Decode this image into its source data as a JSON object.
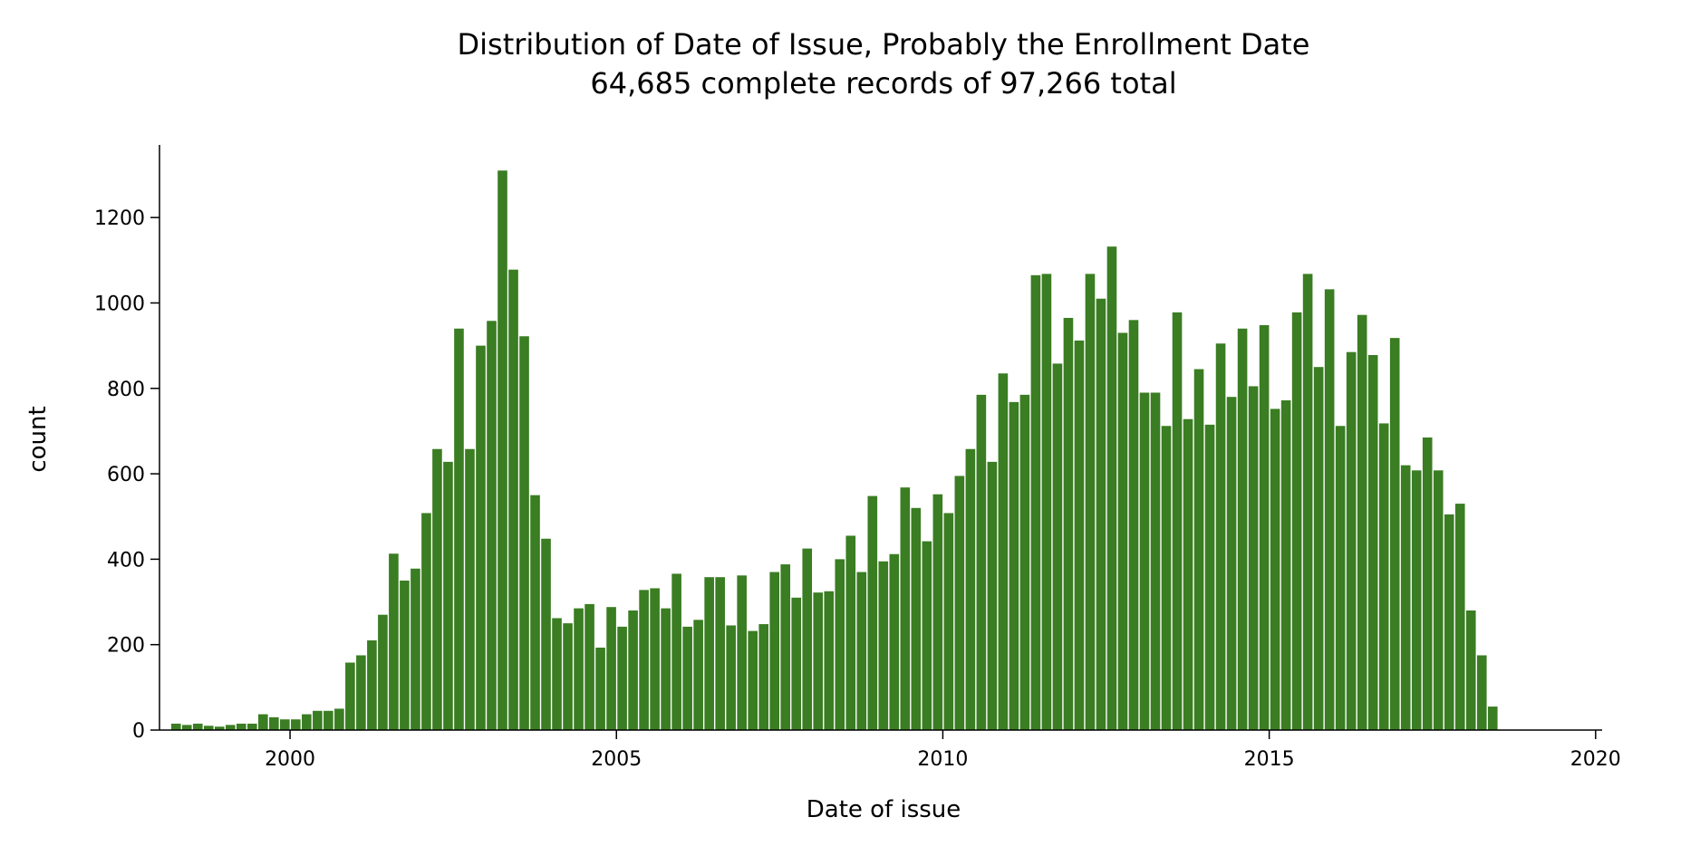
{
  "chart_data": {
    "type": "bar",
    "title": "Distribution of Date of Issue, Probably the Enrollment Date",
    "subtitle": "64,685 complete records of 97,266 total",
    "xlabel": "Date of issue",
    "ylabel": "count",
    "bar_color": "#3a7d22",
    "xlim": [
      1998.0,
      2020.1
    ],
    "ylim": [
      0,
      1370
    ],
    "x_ticks": [
      2000,
      2005,
      2010,
      2015,
      2020
    ],
    "y_ticks": [
      0,
      200,
      400,
      600,
      800,
      1000,
      1200
    ],
    "grid": false,
    "legend": "none",
    "bin_width_years": 0.1667,
    "bin_start": 1998.17,
    "values": [
      15,
      12,
      15,
      10,
      8,
      12,
      15,
      15,
      37,
      30,
      25,
      25,
      37,
      45,
      45,
      50,
      158,
      175,
      210,
      270,
      413,
      350,
      378,
      508,
      658,
      628,
      940,
      658,
      900,
      958,
      1310,
      1078,
      922,
      550,
      448,
      262,
      250,
      285,
      295,
      193,
      288,
      242,
      280,
      328,
      332,
      285,
      366,
      242,
      258,
      358,
      358,
      245,
      362,
      232,
      248,
      370,
      388,
      310,
      425,
      322,
      325,
      400,
      455,
      370,
      548,
      395,
      412,
      568,
      520,
      442,
      552,
      508,
      595,
      658,
      785,
      628,
      835,
      768,
      785,
      1065,
      1068,
      858,
      965,
      912,
      1068,
      1010,
      1132,
      930,
      960,
      790,
      790,
      712,
      978,
      728,
      845,
      715,
      905,
      780,
      940,
      805,
      948,
      752,
      772,
      978,
      1068,
      850,
      1032,
      712,
      885,
      972,
      878,
      718,
      918,
      620,
      608,
      685,
      608,
      505,
      530,
      280,
      175,
      55
    ]
  }
}
